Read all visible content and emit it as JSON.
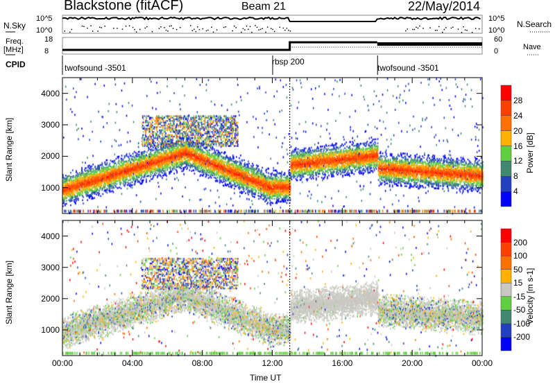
{
  "header": {
    "station": "Blackstone (fitACF)",
    "beam": "Beam 21",
    "date": "22/May/2014"
  },
  "summary": {
    "nsky_label": "N.Sky",
    "nsearch_label": "N.Search",
    "noise_ticks": [
      "10^5",
      "10^0"
    ],
    "freq_label": "Freq.",
    "freq_unit": "[MHz]",
    "freq_ticks": [
      "18",
      "8"
    ],
    "nave_label": "Nave",
    "nave_ticks": [
      "60",
      "0"
    ],
    "cpid_label": "CPID",
    "cpid_segments": [
      {
        "name": "twofsound -3501",
        "start_h": 0
      },
      {
        "name": "rbsp 200",
        "start_h": 12
      },
      {
        "name": "twofsound -3501",
        "start_h": 18
      }
    ]
  },
  "chart_data": [
    {
      "type": "heatmap",
      "title": "Power",
      "ylabel": "Slant Range [km]",
      "ylim": [
        180,
        4500
      ],
      "yticks": [
        "1000",
        "2000",
        "3000",
        "4000"
      ],
      "xlim": [
        0,
        24
      ],
      "colorbar": {
        "label": "Power [dB]",
        "ticks": [
          "28",
          "24",
          "20",
          "16",
          "12",
          "8",
          "4"
        ],
        "colors": [
          "#0000ff",
          "#2040c0",
          "#408870",
          "#60d040",
          "#ffb000",
          "#ff7000",
          "#ff4000",
          "#ff0000"
        ]
      }
    },
    {
      "type": "heatmap",
      "title": "Velocity",
      "ylabel": "Slant Range [km]",
      "ylim": [
        180,
        4500
      ],
      "yticks": [
        "1000",
        "2000",
        "3000",
        "4000"
      ],
      "xlim": [
        0,
        24
      ],
      "colorbar": {
        "label": "Velocity [m s-1]",
        "ticks": [
          "200",
          "100",
          "50",
          "15",
          "-15",
          "-50",
          "-100",
          "-200"
        ],
        "colors": [
          "#0000ff",
          "#2040c0",
          "#408870",
          "#60d040",
          "#c8c8c0",
          "#ffb000",
          "#ff7000",
          "#ff4000",
          "#ff0000"
        ]
      }
    }
  ],
  "xaxis": {
    "label": "Time UT",
    "ticks": [
      "00:00",
      "04:00",
      "08:00",
      "12:00",
      "16:00",
      "20:00",
      "00:00"
    ]
  }
}
